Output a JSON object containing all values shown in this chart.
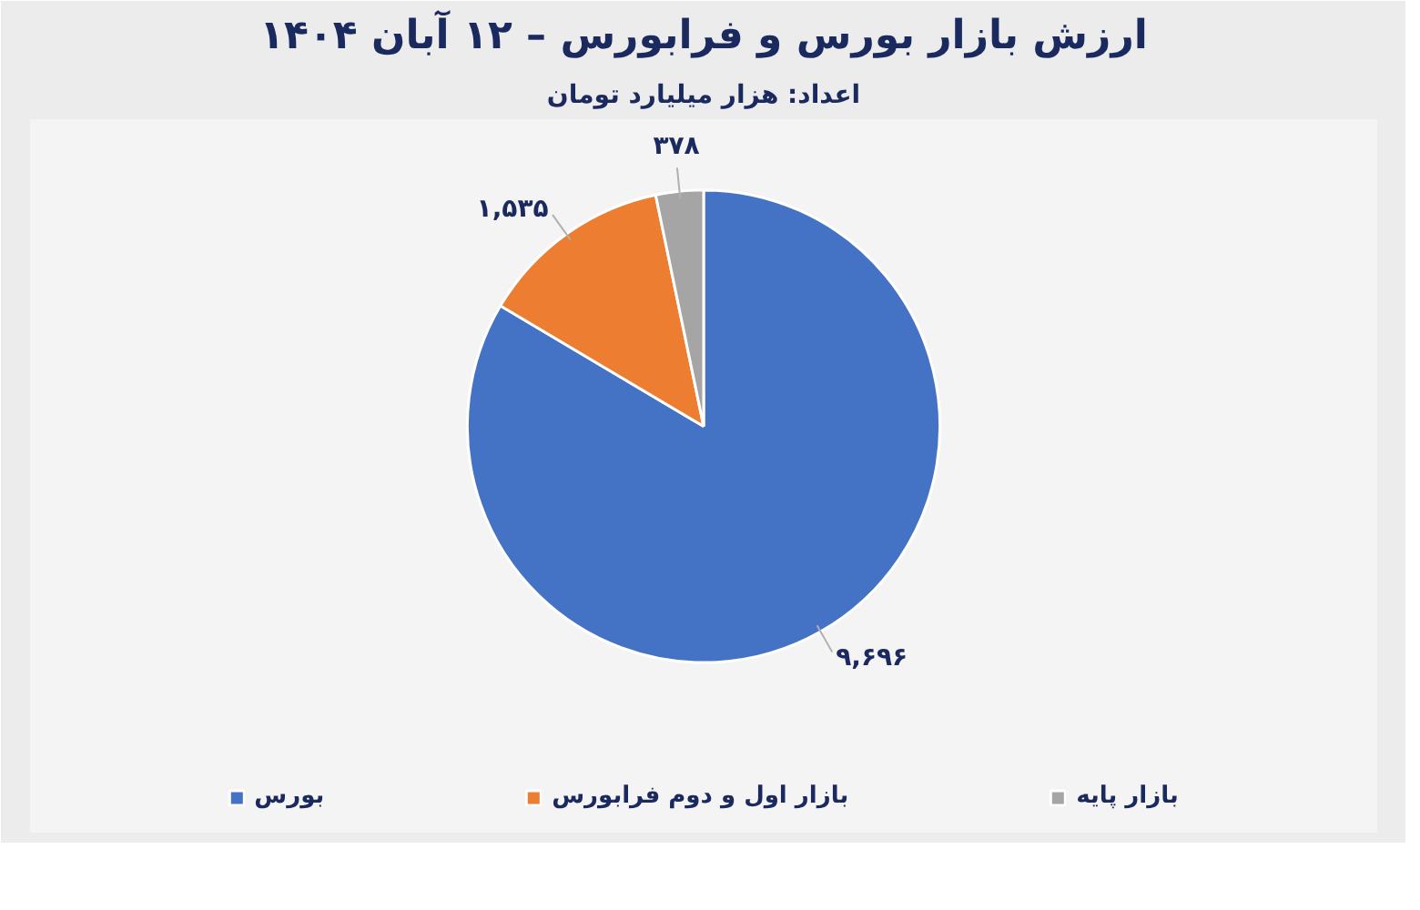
{
  "chart_data": {
    "type": "pie",
    "title": "ارزش بازار بورس و فرابورس – ۱۲ آبان ۱۴۰۴",
    "subtitle": "اعداد: هزار میلیارد تومان",
    "categories": [
      "بورس",
      "بازار اول و دوم فرابورس",
      "بازار پایه"
    ],
    "values": [
      9696,
      1535,
      378
    ],
    "colors": [
      "#4472c4",
      "#ed7d31",
      "#a5a5a5"
    ],
    "value_labels": [
      "۹,۶۹۶",
      "۱,۵۳۵",
      "۳۷۸"
    ],
    "legend": "bottom"
  }
}
